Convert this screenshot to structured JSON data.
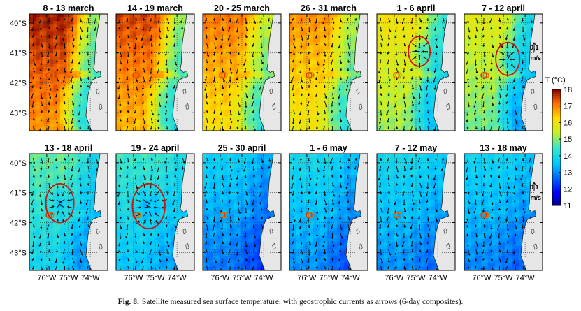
{
  "caption": {
    "label": "Fig. 8.",
    "text": "Satellite measured sea surface temperature, with geostrophic currents as arrows (6-day composites)."
  },
  "chart_data": {
    "type": "heatmap",
    "variable": "sea surface temperature",
    "xlim": [
      -76.8,
      -73.2
    ],
    "ylim": [
      -43.6,
      -39.7
    ],
    "x_ticks": [
      -76,
      -75,
      -74
    ],
    "y_ticks": [
      -40,
      -41,
      -42,
      -43
    ],
    "x_tick_labels": [
      "76°W",
      "75°W",
      "74°W"
    ],
    "y_tick_labels": [
      "40°S",
      "41°S",
      "42°S",
      "43°S"
    ],
    "colorbar": {
      "label": "T (°C)",
      "range": [
        11,
        18
      ],
      "ticks": [
        11,
        12,
        13,
        14,
        15,
        16,
        17,
        18
      ],
      "tick_labels": [
        "11",
        "12",
        "13",
        "14",
        "15",
        "16",
        "17",
        "18"
      ]
    },
    "vector_scale": {
      "value_label": "0.1",
      "unit_label": "m/s",
      "panels": [
        5,
        11
      ]
    },
    "station": {
      "lon": -75.9,
      "lat": -41.75
    },
    "panels": [
      {
        "title": "8 - 13 march",
        "offshore_T": 17.3,
        "coastal_T": 14.6,
        "circle": null
      },
      {
        "title": "14 - 19 march",
        "offshore_T": 17.0,
        "coastal_T": 14.6,
        "circle": null
      },
      {
        "title": "20 - 25 march",
        "offshore_T": 16.6,
        "coastal_T": 14.9,
        "circle": null
      },
      {
        "title": "26 - 31 march",
        "offshore_T": 16.4,
        "coastal_T": 14.8,
        "circle": null
      },
      {
        "title": "1 - 6 april",
        "offshore_T": 15.6,
        "coastal_T": 14.0,
        "circle": {
          "lon": -74.85,
          "lat": -40.95,
          "r": 0.5
        }
      },
      {
        "title": "7 - 12 april",
        "offshore_T": 15.3,
        "coastal_T": 13.6,
        "circle": {
          "lon": -74.8,
          "lat": -41.2,
          "r": 0.55
        }
      },
      {
        "title": "13 - 18 april",
        "offshore_T": 14.3,
        "coastal_T": 13.5,
        "circle": {
          "lon": -75.4,
          "lat": -41.35,
          "r": 0.65
        }
      },
      {
        "title": "19 - 24 april",
        "offshore_T": 14.0,
        "coastal_T": 13.6,
        "circle": {
          "lon": -75.3,
          "lat": -41.45,
          "r": 0.75
        }
      },
      {
        "title": "25 - 30 april",
        "offshore_T": 13.3,
        "coastal_T": 12.8,
        "circle": null
      },
      {
        "title": "1 - 6 may",
        "offshore_T": 13.5,
        "coastal_T": 13.0,
        "circle": null
      },
      {
        "title": "7 - 12 may",
        "offshore_T": 13.5,
        "coastal_T": 13.2,
        "circle": null
      },
      {
        "title": "13 - 18 may",
        "offshore_T": 13.4,
        "coastal_T": 13.1,
        "circle": null
      }
    ]
  }
}
